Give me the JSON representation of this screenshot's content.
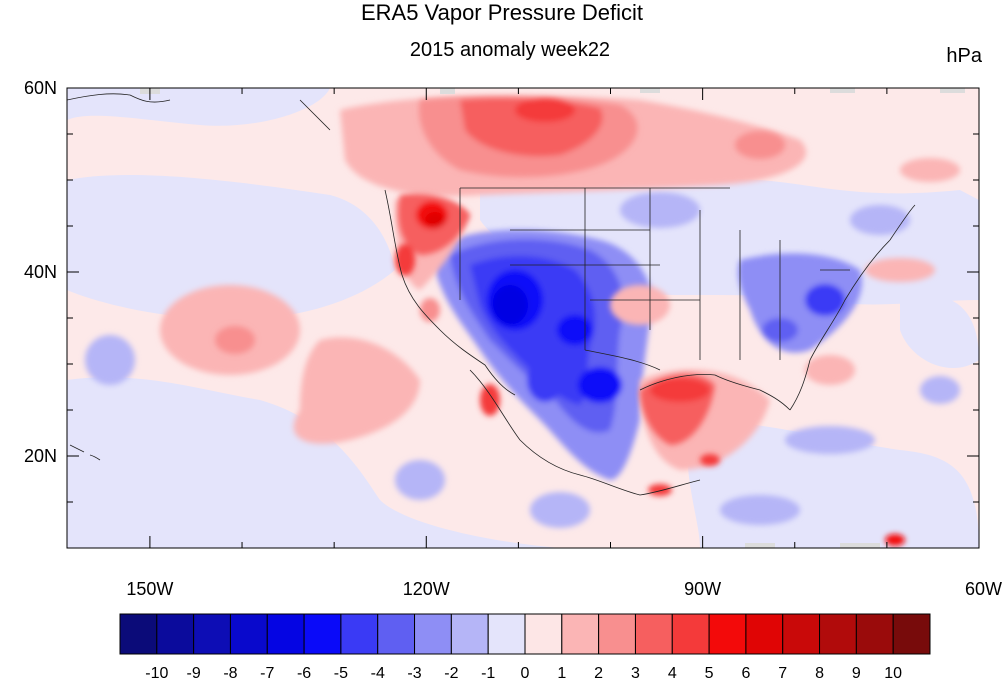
{
  "header": {
    "title": "ERA5 Vapor Pressure Deficit",
    "subtitle": "2015 anomaly week22",
    "units": "hPa"
  },
  "map": {
    "lat_labels": [
      "60N",
      "40N",
      "20N"
    ],
    "lon_labels": [
      "150W",
      "120W",
      "90W",
      "60W"
    ],
    "extent": {
      "lon": [
        -159,
        -60
      ],
      "lat": [
        10,
        60
      ]
    }
  },
  "colorbar": {
    "tick_labels": [
      "-10",
      "-9",
      "-8",
      "-7",
      "-6",
      "-5",
      "-4",
      "-3",
      "-2",
      "-1",
      "0",
      "1",
      "2",
      "3",
      "4",
      "5",
      "6",
      "7",
      "8",
      "9",
      "10"
    ],
    "colors": [
      "#0b0b79",
      "#0b0b9c",
      "#0d0db5",
      "#0909cc",
      "#0505e3",
      "#0a0af9",
      "#3a3af5",
      "#5f5ff2",
      "#8e8ef5",
      "#b5b5f7",
      "#e4e4fb",
      "#fde6e6",
      "#fbb5b5",
      "#f88f8f",
      "#f65f5f",
      "#f43a3a",
      "#f30a0a",
      "#e00505",
      "#c90909",
      "#b10b0b",
      "#9a0b0b",
      "#780b0b"
    ]
  }
}
